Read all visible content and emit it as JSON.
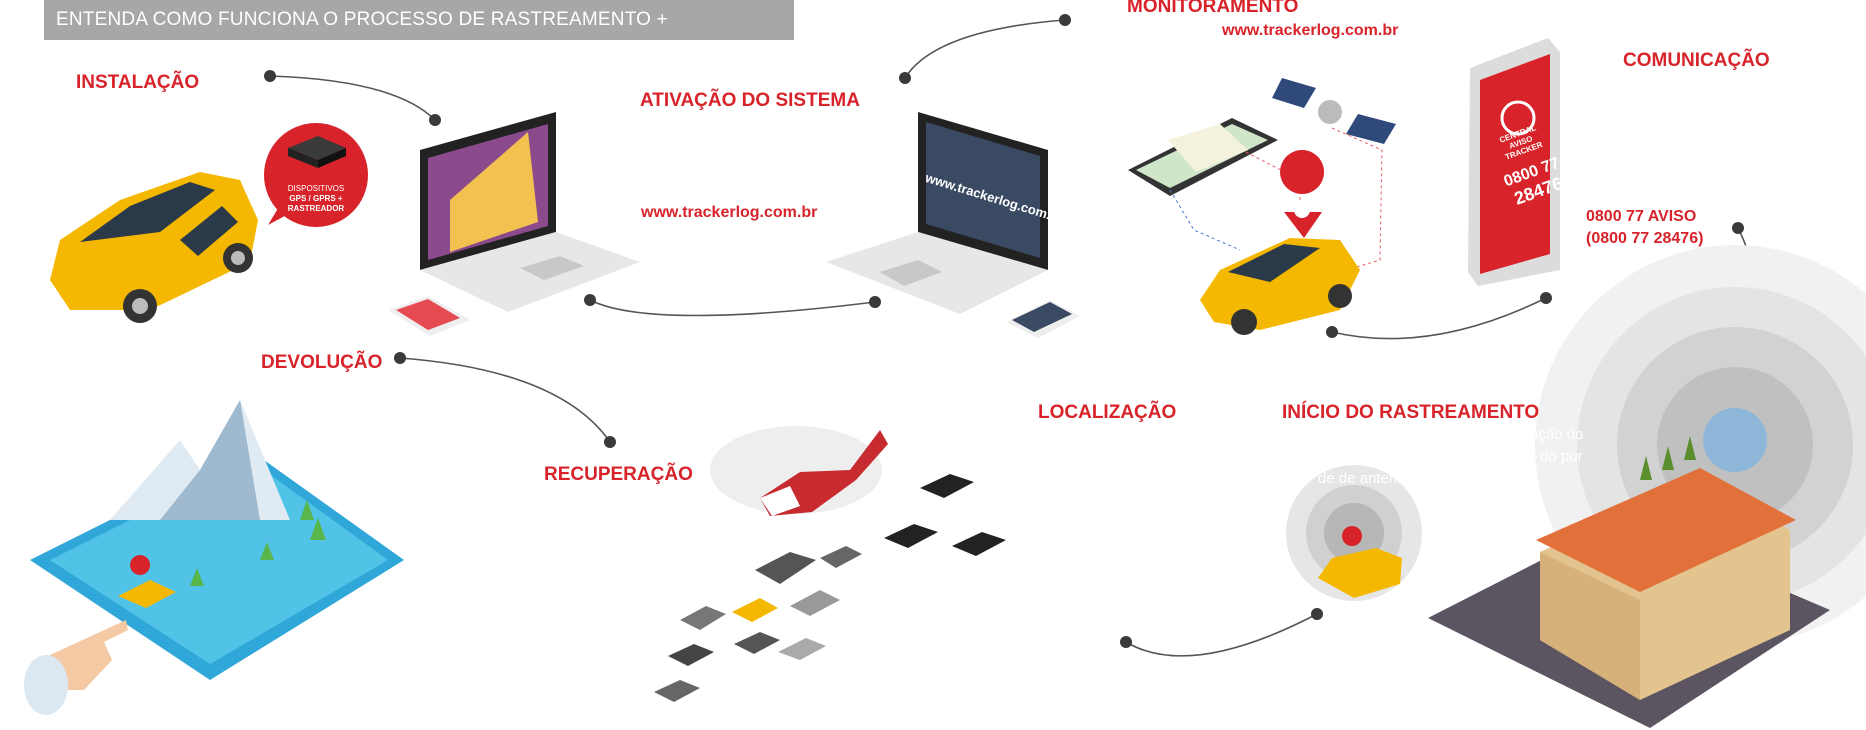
{
  "banner": {
    "title": "ENTENDA COMO FUNCIONA O PROCESSO DE RASTREAMENTO + MONITORAMENTO"
  },
  "steps": {
    "instalacao": "INSTALAÇÃO",
    "ativacao": "ATIVAÇÃO DO SISTEMA",
    "monitoramento": "MONITORAMENTO",
    "comunicacao": "COMUNICAÇÃO",
    "devolucao": "DEVOLUÇÃO",
    "recuperacao": "RECUPERAÇÃO",
    "localizacao": "LOCALIZAÇÃO",
    "inicio": "INÍCIO DO RASTREAMENTO"
  },
  "urls": {
    "activation_url": "www.trackerlog.com.br",
    "monitoring_url": "www.trackerlog.com.br",
    "laptop_screen_url": "www.trackerlog.com.br"
  },
  "device_badge": {
    "line1": "DISPOSITIVOS",
    "line2": "GPS / GPRS +",
    "line3": "RASTREADOR"
  },
  "phone": {
    "line1": "CENTRAL AVISO",
    "line2": "TRACKER",
    "number1": "0800 77",
    "number2": "28476"
  },
  "contact": {
    "line1": "0800 77 AVISO",
    "line2": "(0800 77 28476)"
  },
  "faded_text": {
    "line1": "ação do",
    "line2": "do por",
    "line3": "de de antena"
  },
  "colors": {
    "accent": "#d8232a",
    "banner": "#a7a7a7",
    "car": "#f5b800",
    "connector": "#444444"
  }
}
